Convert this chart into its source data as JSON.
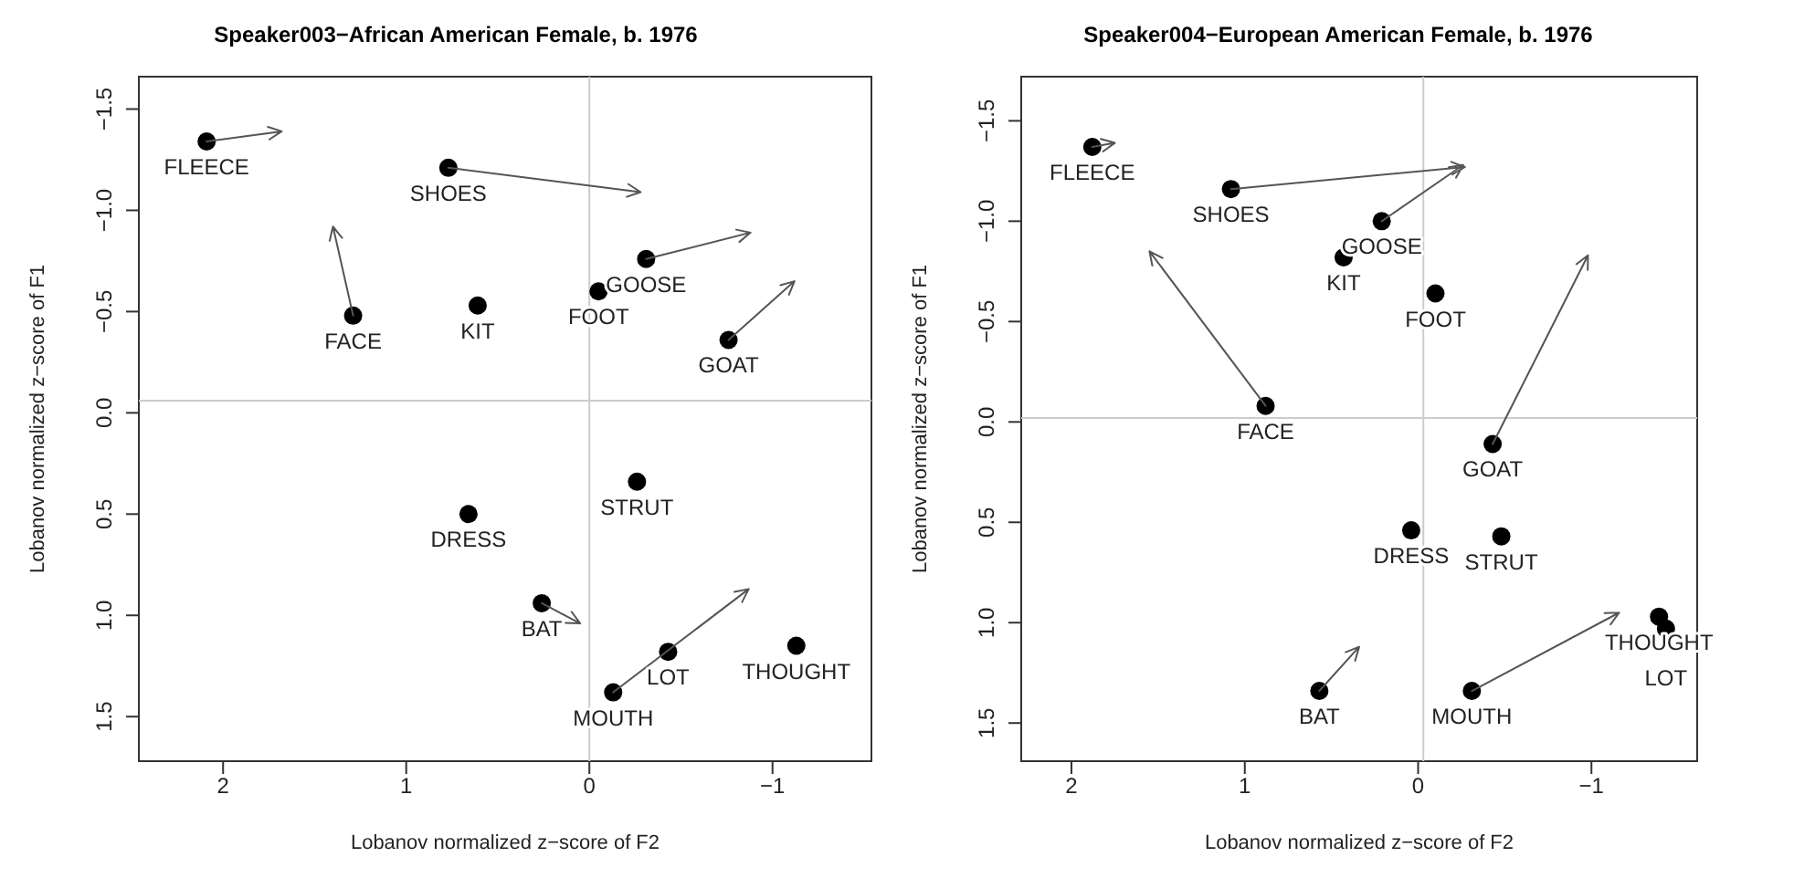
{
  "chart_data": [
    {
      "type": "scatter",
      "title": "Speaker003−African American Female, b. 1976",
      "xlabel": "Lobanov normalized z−score of F2",
      "ylabel": "Lobanov normalized z−score of F1",
      "xlim": [
        2.46,
        -1.54
      ],
      "ylim": [
        1.72,
        -1.66
      ],
      "xticks": [
        2,
        1,
        0,
        -1
      ],
      "yticks": [
        {
          "value": -1.5,
          "label": "−1.5"
        },
        {
          "value": -1,
          "label": "−1.0"
        },
        {
          "value": -0.5,
          "label": "−0.5"
        },
        {
          "value": 0,
          "label": "0.0"
        },
        {
          "value": 0.5,
          "label": "0.5"
        },
        {
          "value": 1,
          "label": "1.0"
        },
        {
          "value": 1.5,
          "label": "1.5"
        }
      ],
      "grid": false,
      "legend": false,
      "ref_lines": [
        {
          "axis": "x",
          "value": 0,
          "color": "#cccccc"
        },
        {
          "axis": "y",
          "value": -0.06,
          "color": "#cccccc"
        }
      ],
      "series": [
        {
          "type": "scatter",
          "color": "#000000",
          "marker": "circle",
          "x": [
            2.09,
            1.29,
            0.77,
            0.61,
            -0.05,
            -0.31,
            -0.76,
            0.66,
            -0.26,
            0.26,
            -0.43,
            -0.13,
            -1.13
          ],
          "values": [
            -1.34,
            -0.48,
            -1.21,
            -0.53,
            -0.6,
            -0.76,
            -0.36,
            0.5,
            0.34,
            0.94,
            1.18,
            1.38,
            1.15
          ]
        },
        {
          "type": "line",
          "color": "#555555",
          "marker": "none",
          "x": [
            2.09,
            1.68
          ],
          "values": [
            -1.34,
            -1.39
          ]
        },
        {
          "type": "line",
          "color": "#555555",
          "marker": "none",
          "x": [
            1.29,
            1.4
          ],
          "values": [
            -0.48,
            -0.92
          ]
        },
        {
          "type": "line",
          "color": "#555555",
          "marker": "none",
          "x": [
            0.77,
            -0.28
          ],
          "values": [
            -1.21,
            -1.09
          ]
        },
        {
          "type": "line",
          "color": "#555555",
          "marker": "none",
          "x": [
            -0.31,
            -0.88
          ],
          "values": [
            -0.76,
            -0.89
          ]
        },
        {
          "type": "line",
          "color": "#555555",
          "marker": "none",
          "x": [
            -0.76,
            -1.12
          ],
          "values": [
            -0.36,
            -0.65
          ]
        },
        {
          "type": "line",
          "color": "#555555",
          "marker": "none",
          "x": [
            0.26,
            0.05
          ],
          "values": [
            0.94,
            1.04
          ]
        },
        {
          "type": "line",
          "color": "#555555",
          "marker": "none",
          "x": [
            -0.13,
            -0.87
          ],
          "values": [
            1.38,
            0.87
          ]
        }
      ],
      "annotations": [
        {
          "text": "FLEECE",
          "x": 2.09,
          "y": -1.34
        },
        {
          "text": "FACE",
          "x": 1.29,
          "y": -0.48
        },
        {
          "text": "SHOES",
          "x": 0.77,
          "y": -1.21
        },
        {
          "text": "KIT",
          "x": 0.61,
          "y": -0.53
        },
        {
          "text": "FOOT",
          "x": -0.05,
          "y": -0.6
        },
        {
          "text": "GOOSE",
          "x": -0.31,
          "y": -0.76
        },
        {
          "text": "GOAT",
          "x": -0.76,
          "y": -0.36
        },
        {
          "text": "DRESS",
          "x": 0.66,
          "y": 0.5
        },
        {
          "text": "STRUT",
          "x": -0.26,
          "y": 0.34
        },
        {
          "text": "BAT",
          "x": 0.26,
          "y": 0.94
        },
        {
          "text": "LOT",
          "x": -0.43,
          "y": 1.18
        },
        {
          "text": "MOUTH",
          "x": -0.13,
          "y": 1.38
        },
        {
          "text": "THOUGHT",
          "x": -1.13,
          "y": 1.15
        }
      ]
    },
    {
      "type": "scatter",
      "title": "Speaker004−European American Female, b. 1976",
      "xlabel": "Lobanov normalized z−score of F2",
      "ylabel": "Lobanov normalized z−score of F1",
      "xlim": [
        2.29,
        -1.61
      ],
      "ylim": [
        1.69,
        -1.72
      ],
      "xticks": [
        2,
        1,
        0,
        -1
      ],
      "yticks": [
        {
          "value": -1.5,
          "label": "−1.5"
        },
        {
          "value": -1,
          "label": "−1.0"
        },
        {
          "value": -0.5,
          "label": "−0.5"
        },
        {
          "value": 0,
          "label": "0.0"
        },
        {
          "value": 0.5,
          "label": "0.5"
        },
        {
          "value": 1,
          "label": "1.0"
        },
        {
          "value": 1.5,
          "label": "1.5"
        }
      ],
      "grid": false,
      "legend": false,
      "ref_lines": [
        {
          "axis": "x",
          "value": -0.03,
          "color": "#cccccc"
        },
        {
          "axis": "y",
          "value": -0.02,
          "color": "#cccccc"
        }
      ],
      "series": [
        {
          "type": "scatter",
          "color": "#000000",
          "marker": "circle",
          "x": [
            1.88,
            1.08,
            0.21,
            0.43,
            -0.1,
            0.88,
            -0.43,
            0.04,
            -0.48,
            0.57,
            -0.31,
            -1.39,
            -1.43
          ],
          "values": [
            -1.37,
            -1.16,
            -1.0,
            -0.82,
            -0.64,
            -0.08,
            0.11,
            0.54,
            0.57,
            1.34,
            1.34,
            0.97,
            1.03
          ]
        },
        {
          "type": "line",
          "color": "#555555",
          "marker": "none",
          "x": [
            1.88,
            1.75
          ],
          "values": [
            -1.37,
            -1.39
          ]
        },
        {
          "type": "line",
          "color": "#555555",
          "marker": "none",
          "x": [
            1.08,
            -0.27
          ],
          "values": [
            -1.16,
            -1.27
          ]
        },
        {
          "type": "line",
          "color": "#555555",
          "marker": "none",
          "x": [
            0.21,
            -0.26
          ],
          "values": [
            -1.0,
            -1.28
          ]
        },
        {
          "type": "line",
          "color": "#555555",
          "marker": "none",
          "x": [
            0.88,
            1.55
          ],
          "values": [
            -0.08,
            -0.85
          ]
        },
        {
          "type": "line",
          "color": "#555555",
          "marker": "none",
          "x": [
            -0.43,
            -0.98
          ],
          "values": [
            0.11,
            -0.83
          ]
        },
        {
          "type": "line",
          "color": "#555555",
          "marker": "none",
          "x": [
            0.57,
            0.34
          ],
          "values": [
            1.34,
            1.12
          ]
        },
        {
          "type": "line",
          "color": "#555555",
          "marker": "none",
          "x": [
            -0.31,
            -1.16
          ],
          "values": [
            1.34,
            0.95
          ]
        }
      ],
      "annotations": [
        {
          "text": "FLEECE",
          "x": 1.88,
          "y": -1.37
        },
        {
          "text": "SHOES",
          "x": 1.08,
          "y": -1.16
        },
        {
          "text": "GOOSE",
          "x": 0.21,
          "y": -1.0
        },
        {
          "text": "KIT",
          "x": 0.43,
          "y": -0.82
        },
        {
          "text": "FOOT",
          "x": -0.1,
          "y": -0.64
        },
        {
          "text": "FACE",
          "x": 0.88,
          "y": -0.08
        },
        {
          "text": "GOAT",
          "x": -0.43,
          "y": 0.11
        },
        {
          "text": "DRESS",
          "x": 0.04,
          "y": 0.54
        },
        {
          "text": "STRUT",
          "x": -0.48,
          "y": 0.57
        },
        {
          "text": "BAT",
          "x": 0.57,
          "y": 1.34
        },
        {
          "text": "MOUTH",
          "x": -0.31,
          "y": 1.34
        },
        {
          "text": "THOUGHT",
          "x": -1.39,
          "y": 0.97
        },
        {
          "text": "LOT",
          "x": -1.43,
          "y": 1.03
        }
      ]
    }
  ]
}
